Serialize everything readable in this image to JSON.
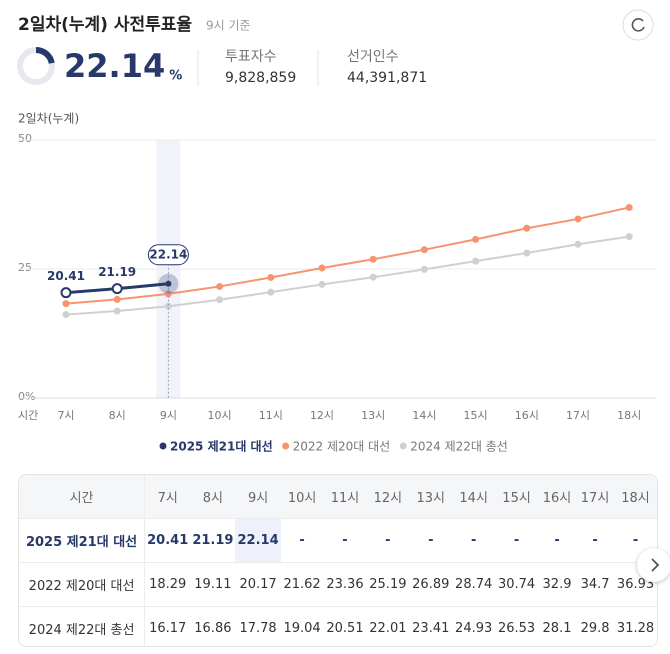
{
  "header": {
    "title": "2일차(누계) 사전투표율",
    "basis": "9시 기준"
  },
  "summary": {
    "rate": 22.14,
    "unit": "%",
    "stats": [
      {
        "label": "투표자수",
        "value": "9,828,859"
      },
      {
        "label": "선거인수",
        "value": "44,391,871"
      }
    ]
  },
  "chart_data": {
    "type": "line",
    "y_label": "2일차(누계)",
    "x_label": "시간",
    "categories": [
      "7시",
      "8시",
      "9시",
      "10시",
      "11시",
      "12시",
      "13시",
      "14시",
      "15시",
      "16시",
      "17시",
      "18시"
    ],
    "series": [
      {
        "name": "2025 제21대 대선",
        "color": "#27386a",
        "values": [
          20.41,
          21.19,
          22.14,
          null,
          null,
          null,
          null,
          null,
          null,
          null,
          null,
          null
        ]
      },
      {
        "name": "2022 제20대 대선",
        "color": "#f7936e",
        "values": [
          18.29,
          19.11,
          20.17,
          21.62,
          23.36,
          25.19,
          26.89,
          28.74,
          30.74,
          32.9,
          34.7,
          36.93
        ]
      },
      {
        "name": "2024 제22대 총선",
        "color": "#d0d0d0",
        "values": [
          16.17,
          16.86,
          17.78,
          19.04,
          20.51,
          22.01,
          23.41,
          24.93,
          26.53,
          28.1,
          29.8,
          31.28
        ]
      }
    ],
    "ylim": [
      0,
      50
    ],
    "yticks": [
      {
        "value": 0,
        "label": "0%"
      },
      25,
      50
    ],
    "grid": true,
    "legend": "bottom"
  },
  "table": {
    "empty": "-"
  }
}
